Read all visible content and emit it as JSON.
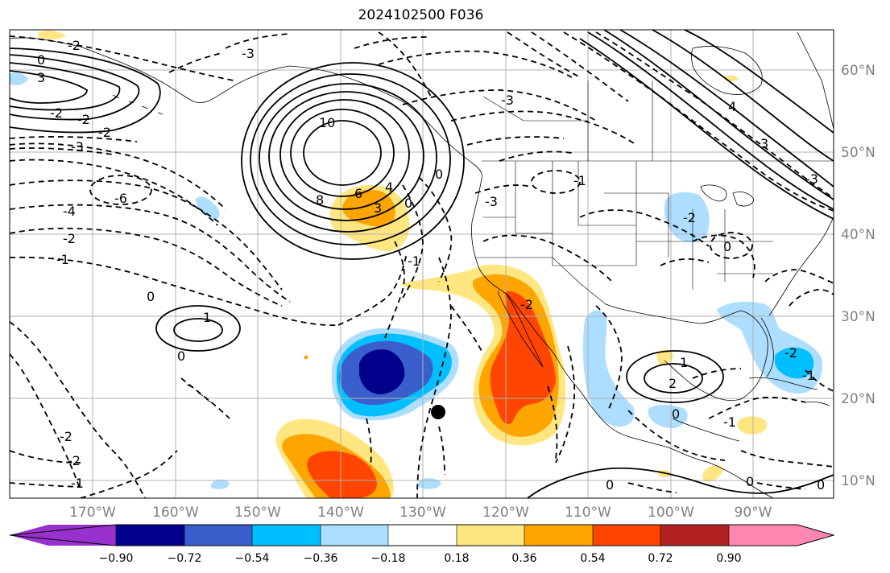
{
  "title": "2024102500 F036",
  "map": {
    "region": "Northeast Pacific and North America",
    "latitude_labels": [
      "60°N",
      "50°N",
      "40°N",
      "30°N",
      "20°N",
      "10°N"
    ],
    "longitude_labels": [
      "170°W",
      "160°W",
      "150°W",
      "140°W",
      "130°W",
      "120°W",
      "110°W",
      "100°W",
      "90°W"
    ],
    "contour_labels": [
      "-2",
      "0",
      "3",
      "-2",
      "-2",
      "-3",
      "-2",
      "-3",
      "-6",
      "-4",
      "-2",
      "-1",
      "0",
      "1",
      "0",
      "10",
      "8",
      "6",
      "4",
      "3",
      "0",
      "-3",
      "0",
      "-1",
      "-2",
      "-3",
      "-1",
      "-2",
      "1",
      "2",
      "-2",
      "0",
      "-1",
      "0",
      "0",
      "0",
      "-1",
      "-2",
      "4",
      "3",
      "-1",
      "-2",
      "-3",
      "0"
    ]
  },
  "colorbar": {
    "tick_labels": [
      "−0.90",
      "−0.72",
      "−0.54",
      "−0.36",
      "−0.18",
      "0.18",
      "0.36",
      "0.54",
      "0.72",
      "0.90"
    ],
    "colors": [
      "#9932CC",
      "#00008B",
      "#3A5FCD",
      "#00BFFF",
      "#ADDEFF",
      "#FFFFFF",
      "#FFE680",
      "#FFA500",
      "#FF4500",
      "#B22222",
      "#FF86B0"
    ]
  },
  "fill_colors": {
    "neg_090": "#00008B",
    "neg_072": "#3A5FCD",
    "neg_054": "#00BFFF",
    "neg_036": "#ADDEFF",
    "pos_036": "#FFE680",
    "pos_054": "#FFA500",
    "pos_072": "#FF4500"
  }
}
